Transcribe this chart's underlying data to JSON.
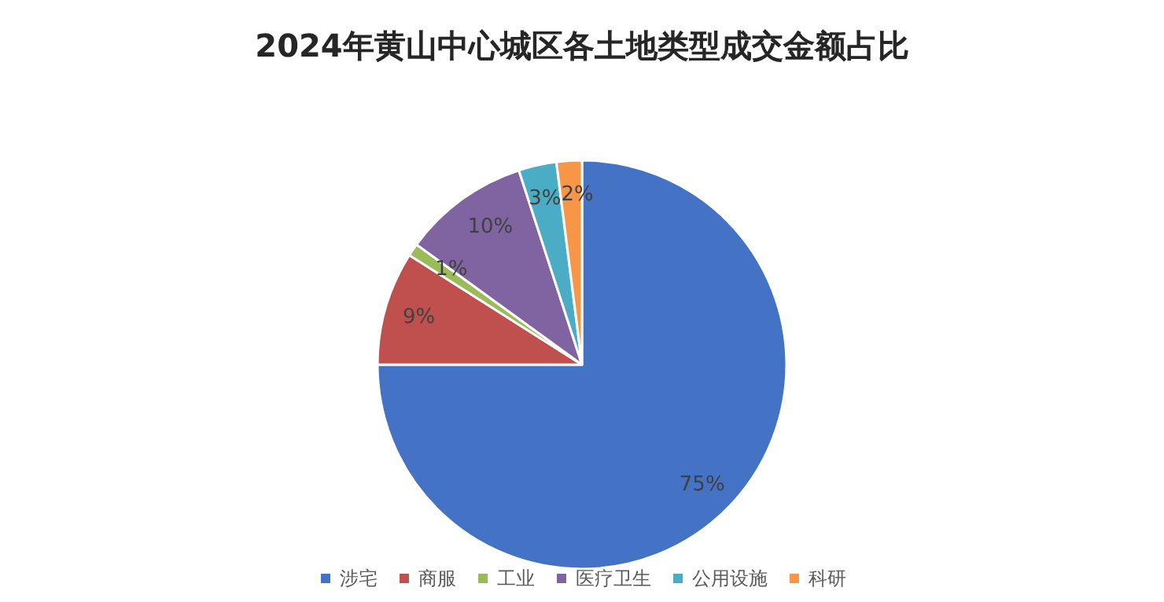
{
  "chart_data": {
    "type": "pie",
    "title": "2024年黄山中心城区各土地类型成交金额占比",
    "categories": [
      "涉宅",
      "商服",
      "工业",
      "医疗卫生",
      "公用设施",
      "科研"
    ],
    "values": [
      75,
      9,
      1,
      10,
      3,
      2
    ],
    "colors": [
      "#4472c4",
      "#c0504d",
      "#9bbb59",
      "#8064a2",
      "#4bacc6",
      "#f79646"
    ],
    "value_labels": [
      "75%",
      "9%",
      "1%",
      "10%",
      "3%",
      "2%"
    ],
    "legend": "bottom"
  }
}
